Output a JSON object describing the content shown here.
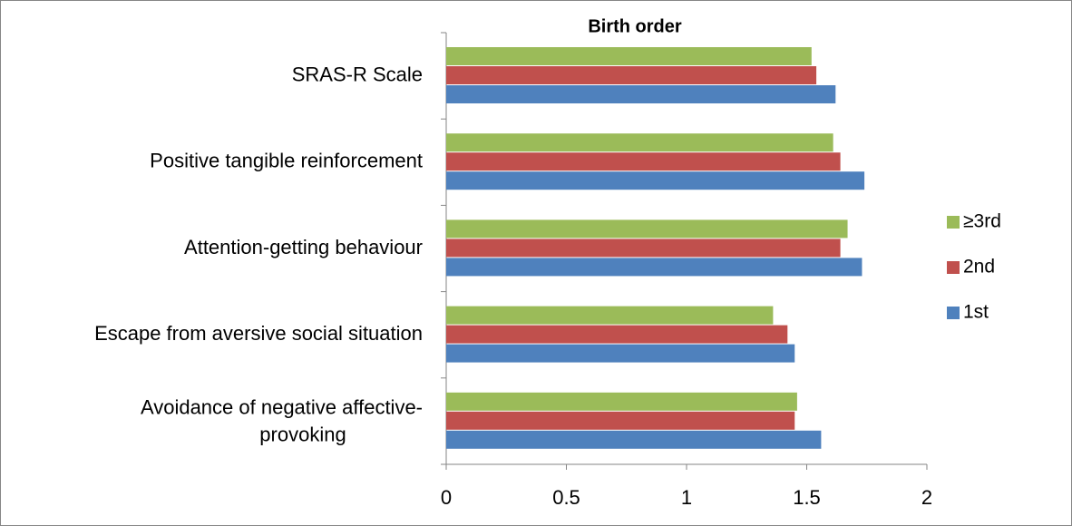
{
  "chart_data": {
    "type": "bar",
    "orientation": "horizontal",
    "title": "Birth order",
    "categories": [
      "Avoidance of negative affective-provoking",
      "Escape from aversive social situation",
      "Attention-getting behaviour",
      "Positive tangible reinforcement",
      "SRAS-R Scale"
    ],
    "series": [
      {
        "name": "1st",
        "color": "#4f81bd",
        "values": [
          1.56,
          1.45,
          1.73,
          1.74,
          1.62
        ]
      },
      {
        "name": "2nd",
        "color": "#c0504d",
        "values": [
          1.45,
          1.42,
          1.64,
          1.64,
          1.54
        ]
      },
      {
        "name": "≥3rd",
        "color": "#9bbb59",
        "values": [
          1.46,
          1.36,
          1.67,
          1.61,
          1.52
        ]
      }
    ],
    "xlim": [
      0,
      2
    ],
    "xticks": [
      0,
      0.5,
      1,
      1.5,
      2
    ],
    "grid": false,
    "legend": "right"
  }
}
